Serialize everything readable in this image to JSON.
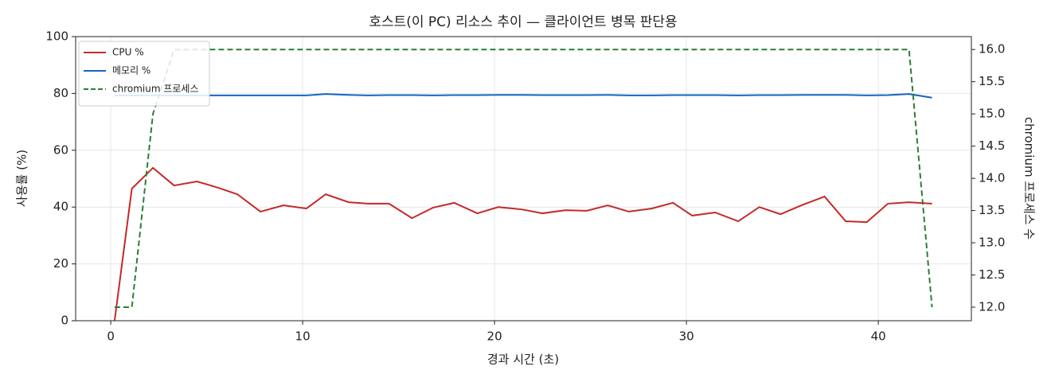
{
  "chart_data": {
    "type": "line",
    "title": "호스트(이 PC) 리소스 추이 — 클라이언트 병목 판단용",
    "x_label": "경과 시간 (초)",
    "y_label": "사용률 (%)",
    "y2_label": "chromium 프로세스 수",
    "x": [
      0.2,
      1.1,
      2.2,
      3.3,
      4.5,
      5.6,
      6.6,
      7.8,
      9.0,
      10.2,
      11.2,
      12.4,
      13.4,
      14.5,
      15.7,
      16.8,
      17.9,
      19.1,
      20.2,
      21.4,
      22.5,
      23.7,
      24.8,
      25.9,
      27.0,
      28.2,
      29.3,
      30.3,
      31.5,
      32.7,
      33.8,
      34.9,
      36.1,
      37.2,
      38.3,
      39.4,
      40.5,
      41.6,
      42.8
    ],
    "series": [
      {
        "name": "CPU %",
        "color": "#c62828",
        "linestyle": "solid",
        "values": [
          0,
          46.5,
          53.8,
          47.6,
          49,
          46.8,
          44.5,
          38.4,
          40.6,
          39.5,
          44.5,
          41.7,
          41.2,
          41.2,
          36.1,
          39.8,
          41.5,
          37.8,
          40,
          39.2,
          37.8,
          38.9,
          38.7,
          40.6,
          38.4,
          39.5,
          41.5,
          37,
          38.1,
          35,
          40,
          37.5,
          40.9,
          43.7,
          35,
          34.7,
          41.2,
          41.7,
          41.2
        ]
      },
      {
        "name": "메모리 %",
        "color": "#1565c0",
        "linestyle": "solid",
        "values": [
          79.3,
          79.3,
          79.3,
          79.3,
          79.3,
          79.3,
          79.3,
          79.3,
          79.3,
          79.3,
          79.8,
          79.5,
          79.3,
          79.4,
          79.4,
          79.3,
          79.4,
          79.4,
          79.5,
          79.5,
          79.4,
          79.4,
          79.4,
          79.5,
          79.3,
          79.3,
          79.4,
          79.4,
          79.4,
          79.3,
          79.4,
          79.4,
          79.5,
          79.5,
          79.5,
          79.3,
          79.4,
          79.8,
          78.5
        ]
      },
      {
        "name": "chromium 프로세스",
        "color": "#2e7d32",
        "linestyle": "dashed",
        "axis": "y2",
        "values": [
          12,
          12,
          15,
          16,
          16,
          16,
          16,
          16,
          16,
          16,
          16,
          16,
          16,
          16,
          16,
          16,
          16,
          16,
          16,
          16,
          16,
          16,
          16,
          16,
          16,
          16,
          16,
          16,
          16,
          16,
          16,
          16,
          16,
          16,
          16,
          16,
          16,
          16,
          12
        ]
      }
    ],
    "xlim": [
      -1.83,
      44.85
    ],
    "xticks": [
      0,
      10,
      20,
      30,
      40
    ],
    "ylim": [
      0,
      100
    ],
    "yticks": [
      0,
      20,
      40,
      60,
      80,
      100
    ],
    "y2lim": [
      11.79,
      16.2
    ],
    "y2ticks": [
      {
        "value": 12,
        "label": "12.0"
      },
      12.5,
      {
        "value": 13,
        "label": "13.0"
      },
      13.5,
      {
        "value": 14,
        "label": "14.0"
      },
      14.5,
      {
        "value": 15,
        "label": "15.0"
      },
      15.5,
      {
        "value": 16,
        "label": "16.0"
      }
    ],
    "grid": true,
    "legend": "upper left"
  }
}
